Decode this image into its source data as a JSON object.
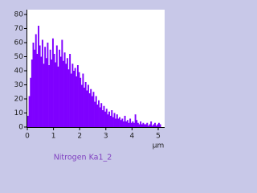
{
  "chart_data": {
    "type": "histogram",
    "title": "Nitrogen Ka1_2",
    "xlabel": "µm",
    "color": "#7f00ff",
    "bins": [
      0,
      0.05,
      0.1,
      0.15,
      0.2,
      0.25,
      0.3,
      0.35,
      0.4,
      0.45,
      0.5,
      0.55,
      0.6,
      0.65,
      0.7,
      0.75,
      0.8,
      0.85,
      0.9,
      0.95,
      1,
      1.05,
      1.1,
      1.15,
      1.2,
      1.25,
      1.3,
      1.35,
      1.4,
      1.45,
      1.5,
      1.55,
      1.6,
      1.65,
      1.7,
      1.75,
      1.8,
      1.85,
      1.9,
      1.95,
      2,
      2.05,
      2.1,
      2.15,
      2.2,
      2.25,
      2.3,
      2.35,
      2.4,
      2.45,
      2.5,
      2.55,
      2.6,
      2.65,
      2.7,
      2.75,
      2.8,
      2.85,
      2.9,
      2.95,
      3,
      3.05,
      3.1,
      3.15,
      3.2,
      3.25,
      3.3,
      3.35,
      3.4,
      3.45,
      3.5,
      3.55,
      3.6,
      3.65,
      3.7,
      3.75,
      3.8,
      3.85,
      3.9,
      3.95,
      4,
      4.05,
      4.1,
      4.15,
      4.2,
      4.25,
      4.3,
      4.35,
      4.4,
      4.45,
      4.5,
      4.55,
      4.6,
      4.65,
      4.7,
      4.75,
      4.8,
      4.85,
      4.9,
      4.95,
      5,
      5.05,
      5.1
    ],
    "values": [
      8,
      22,
      35,
      48,
      60,
      55,
      66,
      52,
      72,
      58,
      50,
      62,
      45,
      57,
      49,
      60,
      44,
      55,
      48,
      63,
      52,
      46,
      58,
      43,
      55,
      50,
      62,
      47,
      53,
      45,
      49,
      41,
      52,
      38,
      45,
      40,
      42,
      36,
      44,
      39,
      35,
      30,
      38,
      28,
      32,
      26,
      30,
      24,
      27,
      22,
      25,
      18,
      22,
      16,
      19,
      14,
      17,
      12,
      15,
      11,
      13,
      9,
      11,
      8,
      12,
      7,
      10,
      6,
      9,
      6,
      7,
      5,
      6,
      4,
      8,
      4,
      5,
      3,
      6,
      3,
      4,
      3,
      9,
      5,
      3,
      2,
      4,
      2,
      3,
      2,
      2,
      3,
      1,
      2,
      4,
      1,
      2,
      3,
      1,
      2,
      3,
      2
    ],
    "xlim": [
      0,
      5.2
    ],
    "ylim": [
      0,
      80
    ],
    "xticks": [
      0,
      1,
      2,
      3,
      4,
      5
    ],
    "yticks": [
      0,
      10,
      20,
      30,
      40,
      50,
      60,
      70,
      80
    ]
  }
}
